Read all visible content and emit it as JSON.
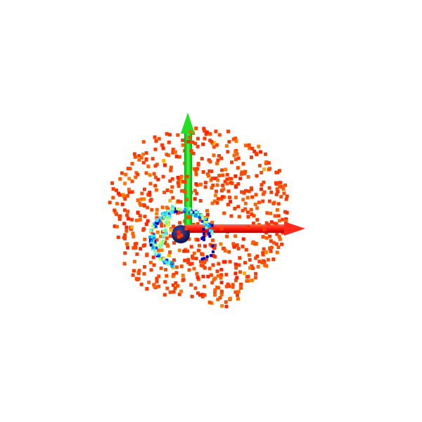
{
  "scene": {
    "background": "#ffffff",
    "point_cloud": {
      "colormap": "jet",
      "dominant_color": "#ff5500",
      "shell_colors": [
        "#ff3a00",
        "#ff4c00",
        "#ff6200",
        "#ff2200",
        "#ff7a00",
        "#ffb000"
      ],
      "ring_colors": [
        "#0000c8",
        "#0044ff",
        "#00a0ff",
        "#40e0ff",
        "#7fffb0",
        "#c0ff60"
      ]
    },
    "axes": {
      "x_axis_color": "#ff2a1a",
      "y_axis_color": "#1ed81e",
      "origin_marker_color": "#10155e"
    }
  }
}
